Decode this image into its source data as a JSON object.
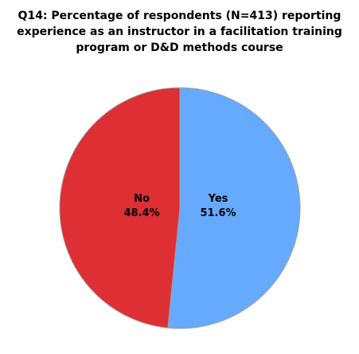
{
  "chart_data": {
    "type": "pie",
    "title_lines": [
      "Q14: Percentage of respondents (N=413) reporting",
      "experience as an instructor in a facilitation training",
      "program or D&D methods course"
    ],
    "slices": [
      {
        "label": "Yes",
        "value_label": "51.6%",
        "value": 51.6,
        "color": "#66aaff"
      },
      {
        "label": "No",
        "value_label": "48.4%",
        "value": 48.4,
        "color": "#dd2f34"
      }
    ]
  }
}
